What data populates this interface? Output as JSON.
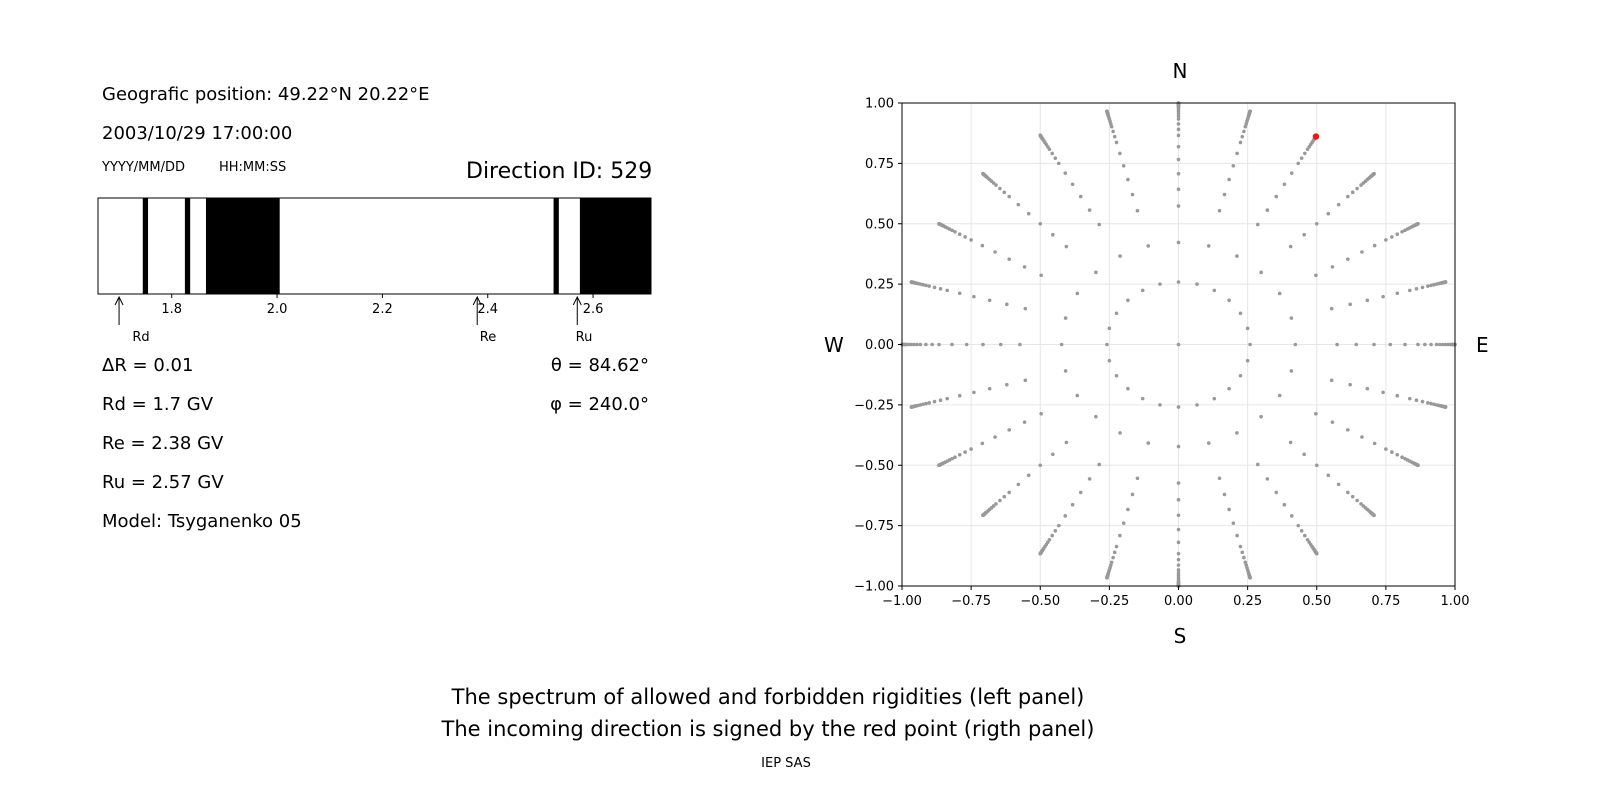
{
  "left_panel": {
    "position": "Geografic position: 49.22°N 20.22°E",
    "datetime": "2003/10/29 17:00:00",
    "date_format": "YYYY/MM/DD",
    "time_format": "HH:MM:SS",
    "direction_id": "Direction ID: 529",
    "delta_r": "ΔR = 0.01",
    "rd": "Rd = 1.7 GV",
    "re": "Re = 2.38 GV",
    "ru": "Ru = 2.57 GV",
    "model": "Model: Tsyganenko 05",
    "theta": "θ = 84.62°",
    "phi": "φ = 240.0°",
    "markers": {
      "rd": "Rd",
      "re": "Re",
      "ru": "Ru"
    }
  },
  "right_panel": {
    "dir_n": "N",
    "dir_s": "S",
    "dir_w": "W",
    "dir_e": "E"
  },
  "caption": {
    "line1": "The spectrum of allowed and forbidden rigidities (left panel)",
    "line2": "The incoming direction is signed by the red point (rigth panel)",
    "footer": "IEP SAS"
  },
  "chart_data": [
    {
      "type": "bar",
      "name": "rigidity spectrum",
      "xlim": [
        1.66,
        2.71
      ],
      "x_ticks": [
        "1.8",
        "2.0",
        "2.2",
        "2.4",
        "2.6"
      ],
      "x_tick_values": [
        1.8,
        2.0,
        2.2,
        2.4,
        2.6
      ],
      "forbidden_bands": [
        [
          1.745,
          1.755
        ],
        [
          1.825,
          1.835
        ],
        [
          1.865,
          2.005
        ],
        [
          2.525,
          2.535
        ],
        [
          2.575,
          2.71
        ]
      ],
      "markers": [
        {
          "label": "Rd",
          "value": 1.7
        },
        {
          "label": "Re",
          "value": 2.38
        },
        {
          "label": "Ru",
          "value": 2.57
        }
      ]
    },
    {
      "type": "scatter",
      "name": "direction map",
      "xlim": [
        -1.0,
        1.0
      ],
      "ylim": [
        -1.0,
        1.0
      ],
      "grid": true,
      "x_ticks": [
        "−1.00",
        "−0.75",
        "−0.50",
        "−0.25",
        "0.00",
        "0.25",
        "0.50",
        "0.75",
        "1.00"
      ],
      "y_ticks": [
        "1.00",
        "0.75",
        "0.50",
        "0.25",
        "0.00",
        "−0.25",
        "−0.50",
        "−0.75",
        "−1.00"
      ],
      "tick_values": [
        -1.0,
        -0.75,
        -0.5,
        -0.25,
        0.0,
        0.25,
        0.5,
        0.75,
        1.0
      ],
      "grid_zenith_angles_deg": [
        0,
        15,
        25,
        35,
        40,
        45,
        50,
        55,
        60,
        63,
        66,
        69,
        71,
        73,
        75,
        77,
        79,
        80,
        81,
        82,
        83,
        84,
        85,
        86,
        87,
        88,
        89,
        90
      ],
      "grid_azimuth_step_deg": 15,
      "highlight_point": {
        "x": 0.497,
        "y": 0.861,
        "color": "#e41a1c"
      },
      "point_color": "#999999"
    }
  ]
}
